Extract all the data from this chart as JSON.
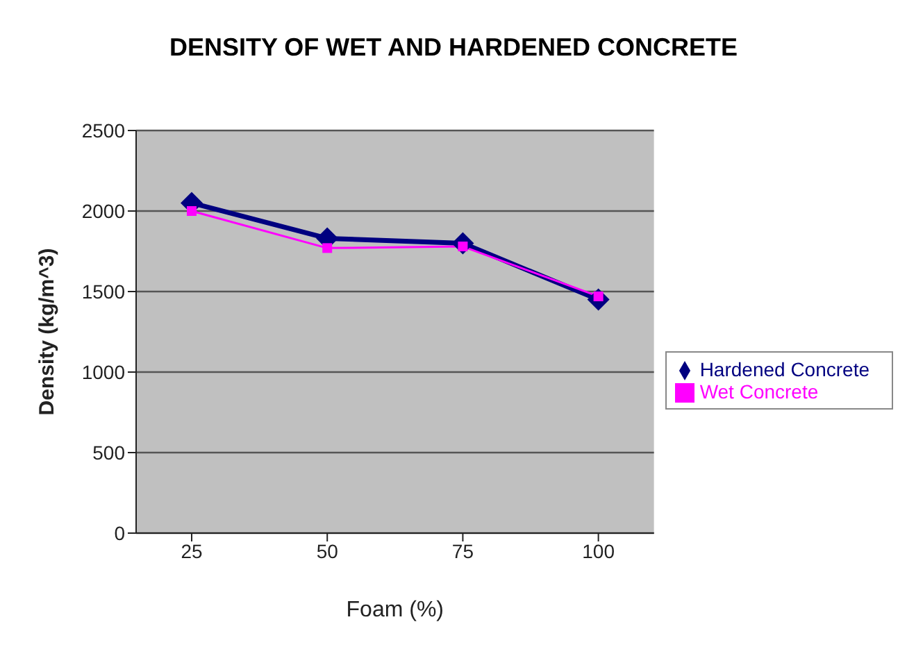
{
  "chart_data": {
    "type": "line",
    "title": "DENSITY OF WET AND HARDENED CONCRETE",
    "xlabel": "Foam (%)",
    "ylabel": "Density (kg/m^3)",
    "categories": [
      "25",
      "50",
      "75",
      "100"
    ],
    "series": [
      {
        "name": "Hardened Concrete",
        "color": "#000080",
        "marker": "diamond",
        "values": [
          2050,
          1830,
          1800,
          1450
        ]
      },
      {
        "name": "Wet Concrete",
        "color": "#ff00ff",
        "marker": "square",
        "values": [
          2000,
          1770,
          1780,
          1470
        ]
      }
    ],
    "ylim": [
      0,
      2500
    ],
    "yticks": [
      0,
      500,
      1000,
      1500,
      2000,
      2500
    ],
    "grid": "y",
    "legend": "right"
  }
}
